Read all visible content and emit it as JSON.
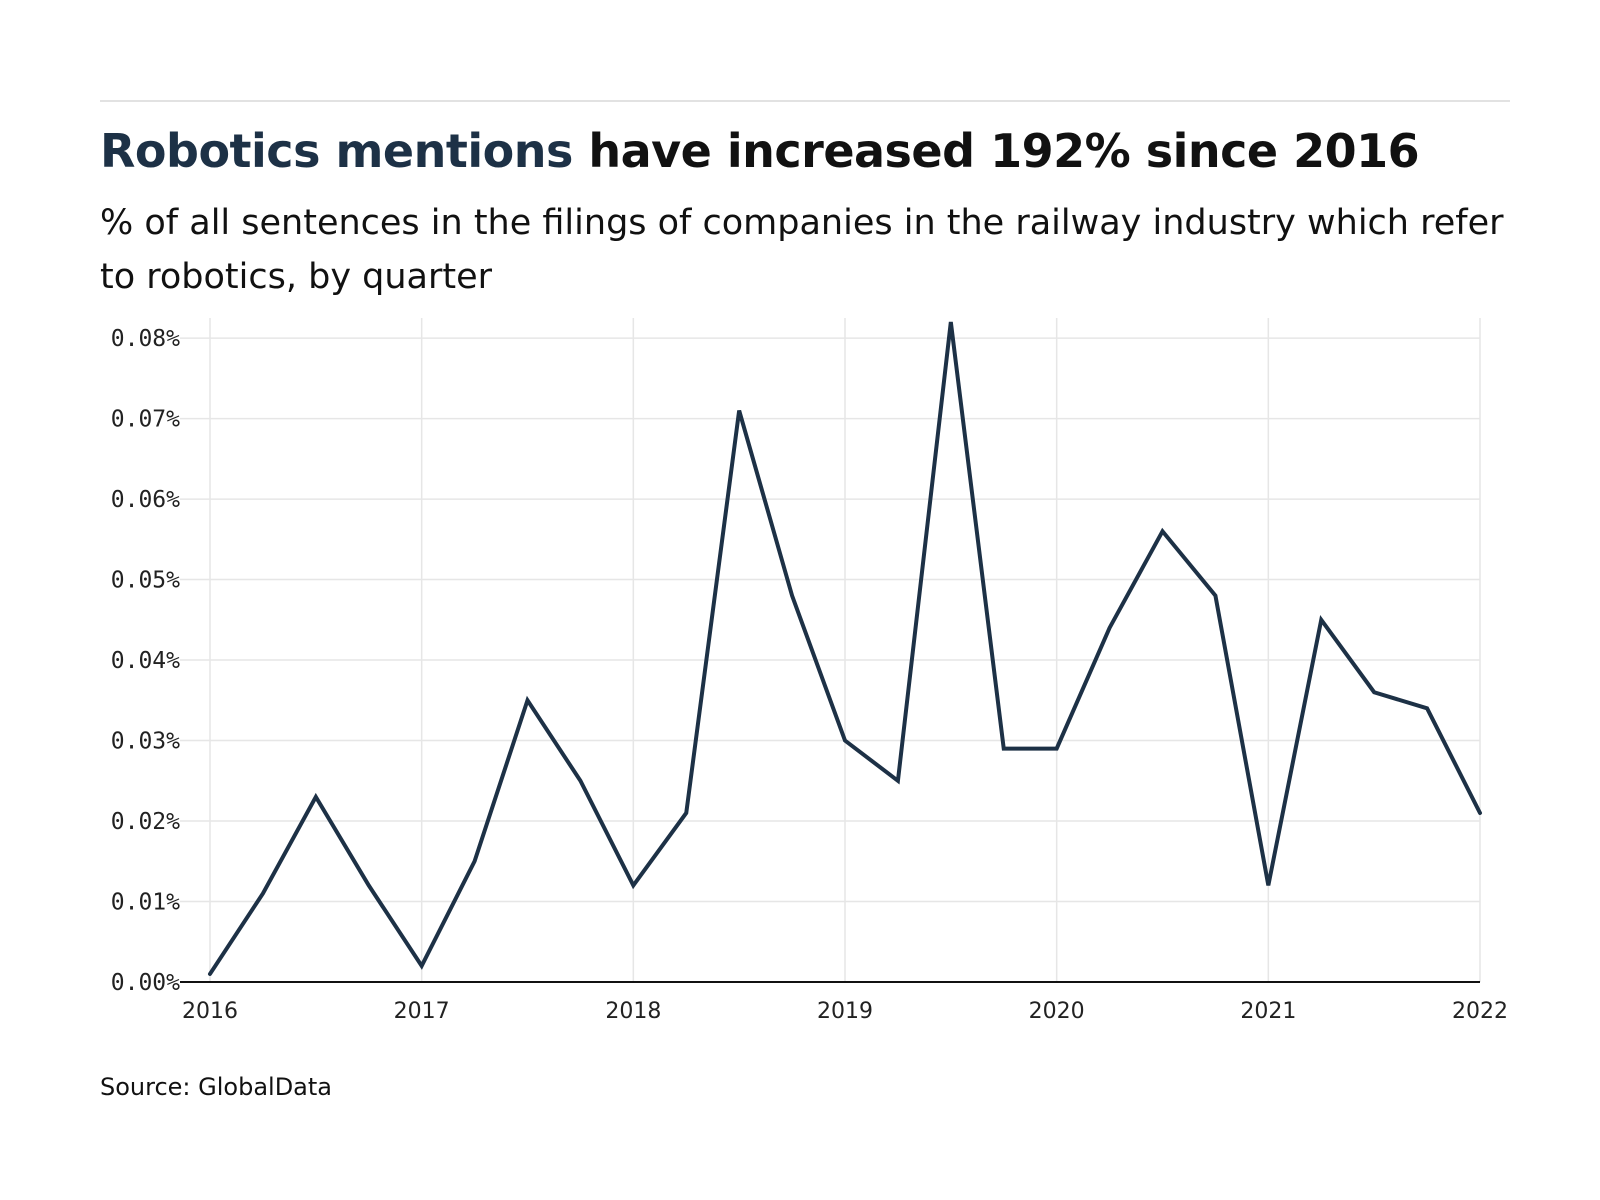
{
  "header": {
    "title_highlight": "Robotics mentions",
    "title_rest": " have increased 192% since 2016",
    "subtitle": "% of all sentences in the filings of companies in the railway industry which refer to robotics, by quarter"
  },
  "footer": {
    "source": "Source: GlobalData"
  },
  "colors": {
    "line": "#1d3146",
    "grid": "#e6e6e6",
    "axis": "#111111",
    "title_highlight": "#1d3146"
  },
  "chart_data": {
    "type": "line",
    "title": "Robotics mentions have increased 192% since 2016",
    "subtitle": "% of all sentences in the filings of companies in the railway industry which refer to robotics, by quarter",
    "xlabel": "",
    "ylabel": "",
    "xlim": [
      2016,
      2022
    ],
    "ylim": [
      0,
      0.082
    ],
    "y_unit": "%",
    "x_ticks": [
      "2016",
      "2017",
      "2018",
      "2019",
      "2020",
      "2021",
      "2022"
    ],
    "y_ticks": [
      "0.00%",
      "0.01%",
      "0.02%",
      "0.03%",
      "0.04%",
      "0.05%",
      "0.06%",
      "0.07%",
      "0.08%"
    ],
    "grid": true,
    "legend": "none",
    "series": [
      {
        "x": [
          "2016-Q1",
          "2016-Q2",
          "2016-Q3",
          "2016-Q4",
          "2017-Q1",
          "2017-Q2",
          "2017-Q3",
          "2017-Q4",
          "2018-Q1",
          "2018-Q2",
          "2018-Q3",
          "2018-Q4",
          "2019-Q1",
          "2019-Q2",
          "2019-Q3",
          "2019-Q4",
          "2020-Q1",
          "2020-Q2",
          "2020-Q3",
          "2020-Q4",
          "2021-Q1",
          "2021-Q2",
          "2021-Q3",
          "2021-Q4",
          "2022-Q1"
        ],
        "values": [
          0.001,
          0.011,
          0.023,
          0.012,
          0.002,
          0.015,
          0.035,
          0.025,
          0.012,
          0.021,
          0.071,
          0.048,
          0.03,
          0.025,
          0.082,
          0.029,
          0.029,
          0.044,
          0.056,
          0.048,
          0.012,
          0.045,
          0.036,
          0.034,
          0.021
        ]
      }
    ]
  }
}
